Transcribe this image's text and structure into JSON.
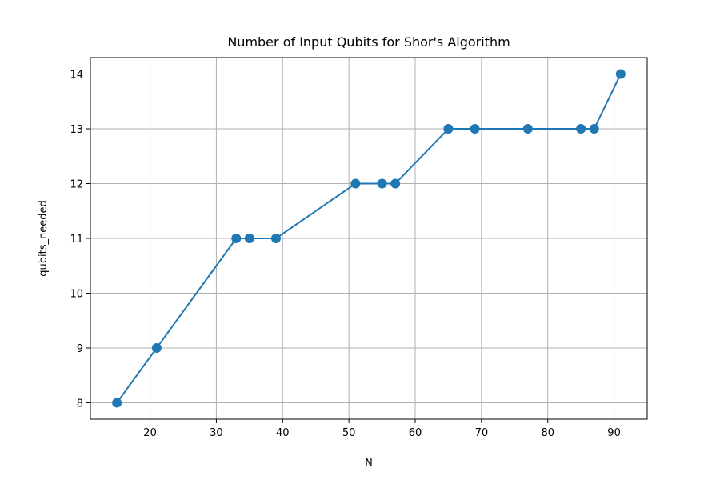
{
  "chart_data": {
    "type": "line",
    "title": "Number of Input Qubits for Shor's Algorithm",
    "xlabel": "N",
    "ylabel": "qubits_needed",
    "xlim": [
      11,
      95
    ],
    "ylim": [
      7.7,
      14.3
    ],
    "xticks": [
      20,
      30,
      40,
      50,
      60,
      70,
      80,
      90
    ],
    "yticks": [
      8,
      9,
      10,
      11,
      12,
      13,
      14
    ],
    "grid": true,
    "marker": "circle",
    "color": "#1f77b4",
    "series": [
      {
        "x": [
          15,
          21,
          33,
          35,
          39,
          51,
          55,
          57,
          65,
          69,
          77,
          85,
          87,
          91
        ],
        "y": [
          8,
          9,
          11,
          11,
          11,
          12,
          12,
          12,
          13,
          13,
          13,
          13,
          13,
          14
        ]
      }
    ]
  }
}
